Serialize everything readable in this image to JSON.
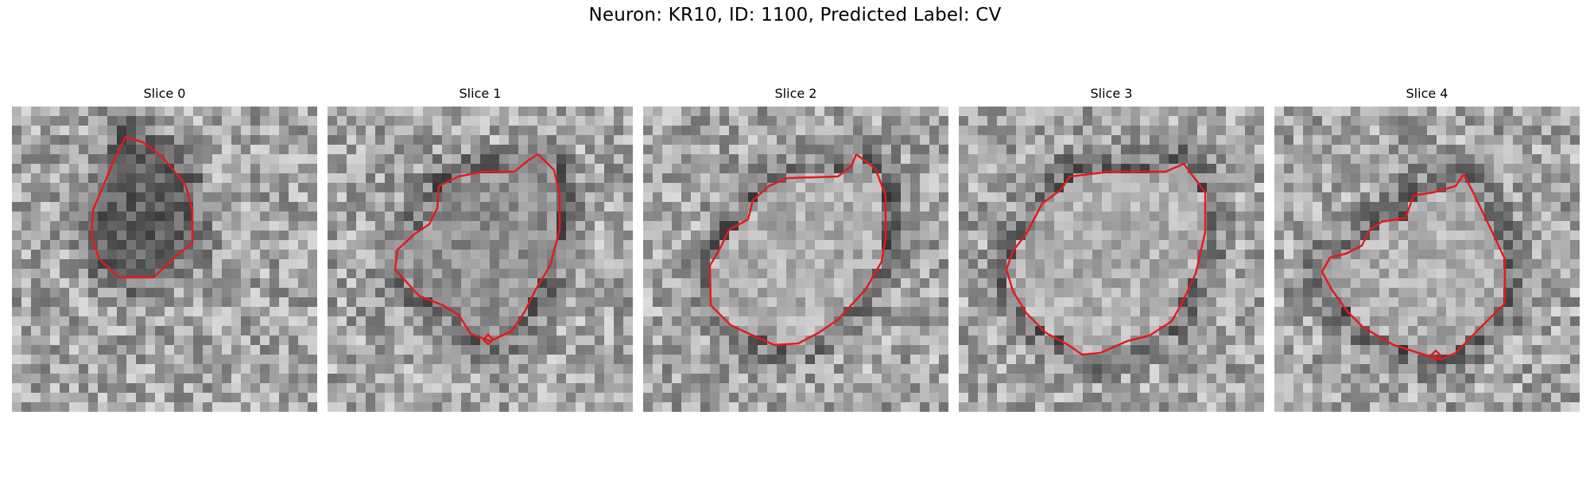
{
  "figure": {
    "title": "Neuron: KR10, ID: 1100, Predicted Label: CV",
    "contour_color": "#e41a1c",
    "panels": [
      {
        "title": "Slice 0",
        "blob_shade": "dark"
      },
      {
        "title": "Slice 1",
        "blob_shade": "medium"
      },
      {
        "title": "Slice 2",
        "blob_shade": "light"
      },
      {
        "title": "Slice 3",
        "blob_shade": "light"
      },
      {
        "title": "Slice 4",
        "blob_shade": "light"
      }
    ]
  }
}
